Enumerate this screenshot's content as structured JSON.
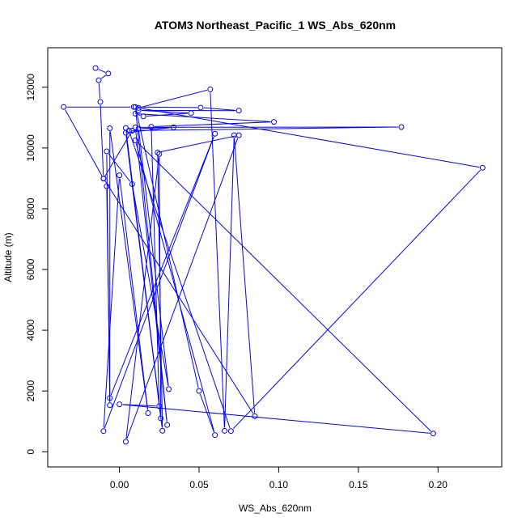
{
  "chart_data": {
    "type": "line",
    "title": "ATOM3 Northeast_Pacific_1 WS_Abs_620nm",
    "xlabel": "WS_Abs_620nm",
    "ylabel": "Altitude (m)",
    "xlim": [
      -0.045,
      0.24
    ],
    "ylim": [
      -500,
      13300
    ],
    "x_ticks": [
      0.0,
      0.05,
      0.1,
      0.15,
      0.2
    ],
    "x_tick_labels": [
      "0.00",
      "0.05",
      "0.10",
      "0.15",
      "0.20"
    ],
    "y_ticks": [
      0,
      2000,
      4000,
      6000,
      8000,
      10000,
      12000
    ],
    "y_tick_labels": [
      "0",
      "2000",
      "4000",
      "6000",
      "8000",
      "10000",
      "12000"
    ],
    "grid": false,
    "legend": "none",
    "series_color": "#0000ff",
    "marker": "open-circle",
    "points": [
      {
        "x": -0.015,
        "y": 12630
      },
      {
        "x": -0.007,
        "y": 12450
      },
      {
        "x": -0.013,
        "y": 12230
      },
      {
        "x": -0.012,
        "y": 11520
      },
      {
        "x": -0.01,
        "y": 9000
      },
      {
        "x": 0.085,
        "y": 1170
      },
      {
        "x": 0.072,
        "y": 10420
      },
      {
        "x": 0.066,
        "y": 690
      },
      {
        "x": 0.057,
        "y": 11930
      },
      {
        "x": 0.012,
        "y": 11320
      },
      {
        "x": 0.228,
        "y": 9350
      },
      {
        "x": 0.07,
        "y": 680
      },
      {
        "x": 0.006,
        "y": 10570
      },
      {
        "x": 0.177,
        "y": 10690
      },
      {
        "x": 0.01,
        "y": 10680
      },
      {
        "x": 0.03,
        "y": 880
      },
      {
        "x": 0.01,
        "y": 11350
      },
      {
        "x": 0.05,
        "y": 2000
      },
      {
        "x": 0.06,
        "y": 550
      },
      {
        "x": 0.01,
        "y": 10250
      },
      {
        "x": 0.197,
        "y": 600
      },
      {
        "x": 0.0,
        "y": 1560
      },
      {
        "x": 0.025,
        "y": 1500
      },
      {
        "x": 0.02,
        "y": 10700
      },
      {
        "x": 0.097,
        "y": 10860
      },
      {
        "x": 0.01,
        "y": 11130
      },
      {
        "x": 0.015,
        "y": 11040
      },
      {
        "x": 0.045,
        "y": 11150
      },
      {
        "x": 0.012,
        "y": 11240
      },
      {
        "x": 0.075,
        "y": 11230
      },
      {
        "x": 0.051,
        "y": 11330
      },
      {
        "x": 0.009,
        "y": 11350
      },
      {
        "x": -0.035,
        "y": 11350
      },
      {
        "x": -0.01,
        "y": 8990
      },
      {
        "x": 0.008,
        "y": 10570
      },
      {
        "x": 0.004,
        "y": 10660
      },
      {
        "x": 0.027,
        "y": 690
      },
      {
        "x": 0.024,
        "y": 9850
      },
      {
        "x": 0.075,
        "y": 10420
      },
      {
        "x": 0.004,
        "y": 330
      },
      {
        "x": 0.025,
        "y": 9800
      },
      {
        "x": 0.026,
        "y": 1100
      },
      {
        "x": 0.004,
        "y": 10500
      },
      {
        "x": 0.034,
        "y": 10680
      },
      {
        "x": 0.012,
        "y": 10640
      },
      {
        "x": 0.031,
        "y": 2060
      },
      {
        "x": 0.008,
        "y": 8810
      },
      {
        "x": -0.008,
        "y": 9890
      },
      {
        "x": -0.006,
        "y": 1530
      },
      {
        "x": -0.006,
        "y": 10650
      },
      {
        "x": 0.018,
        "y": 1270
      },
      {
        "x": 0.0,
        "y": 9100
      },
      {
        "x": -0.01,
        "y": 680
      },
      {
        "x": 0.06,
        "y": 10470
      },
      {
        "x": -0.006,
        "y": 1770
      },
      {
        "x": -0.008,
        "y": 8740
      }
    ]
  }
}
